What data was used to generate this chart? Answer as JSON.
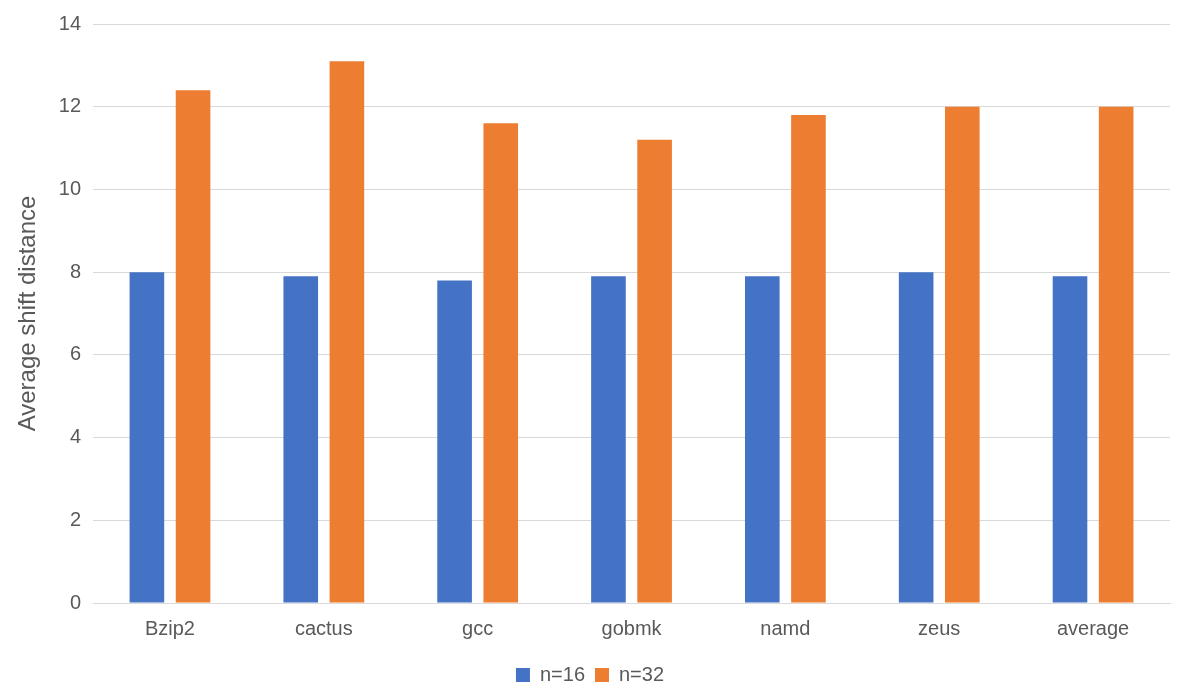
{
  "chart_data": {
    "type": "bar",
    "ylabel": "Average shift distance",
    "categories": [
      "Bzip2",
      "cactus",
      "gcc",
      "gobmk",
      "namd",
      "zeus",
      "average"
    ],
    "series": [
      {
        "name": "n=16",
        "color": "#4472c4",
        "values": [
          8.0,
          7.9,
          7.8,
          7.9,
          7.9,
          8.0,
          7.9
        ]
      },
      {
        "name": "n=32",
        "color": "#ed7d31",
        "values": [
          12.4,
          13.1,
          11.6,
          11.2,
          11.8,
          12.0,
          12.0
        ]
      }
    ],
    "ylim": [
      0,
      14
    ],
    "yticks": [
      0,
      2,
      4,
      6,
      8,
      10,
      12,
      14
    ],
    "grid": "y",
    "legend": "bottom"
  }
}
